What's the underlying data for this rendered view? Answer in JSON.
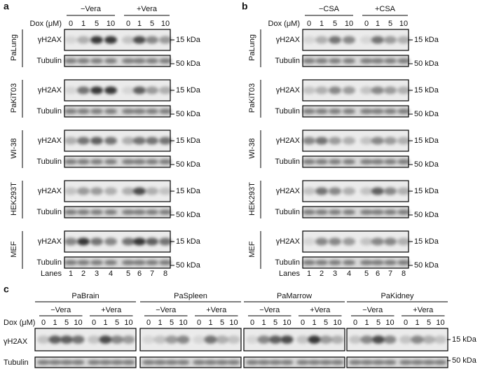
{
  "panels": [
    {
      "label": "a",
      "groups": [
        "−Vera",
        "+Vera"
      ],
      "dose_label": "Dox (μM)",
      "doses": [
        0,
        1,
        5,
        10,
        0,
        1,
        5,
        10
      ],
      "blots": [
        {
          "cell_line": "PaLung",
          "rows": [
            {
              "antibody": "γH2AX",
              "size": "15 kDa"
            },
            {
              "antibody": "Tubulin",
              "size": "50 kDa"
            }
          ]
        },
        {
          "cell_line": "PaKiT03",
          "rows": [
            {
              "antibody": "γH2AX",
              "size": "15 kDa"
            },
            {
              "antibody": "Tubulin",
              "size": "50 kDa"
            }
          ]
        },
        {
          "cell_line": "WI-38",
          "rows": [
            {
              "antibody": "γH2AX",
              "size": "15 kDa"
            },
            {
              "antibody": "Tubulin",
              "size": "50 kDa"
            }
          ]
        },
        {
          "cell_line": "HEK293T",
          "rows": [
            {
              "antibody": "γH2AX",
              "size": "15 kDa"
            },
            {
              "antibody": "Tubulin",
              "size": "50 kDa"
            }
          ]
        },
        {
          "cell_line": "MEF",
          "rows": [
            {
              "antibody": "γH2AX",
              "size": "15 kDa"
            },
            {
              "antibody": "Tubulin",
              "size": "50 kDa"
            }
          ]
        }
      ],
      "lanes_label": "Lanes",
      "lanes": [
        1,
        2,
        3,
        4,
        5,
        6,
        7,
        8
      ]
    },
    {
      "label": "b",
      "groups": [
        "−CSA",
        "+CSA"
      ],
      "dose_label": "Dox (μM)",
      "doses": [
        0,
        1,
        5,
        10,
        0,
        1,
        5,
        10
      ],
      "blots": [
        {
          "cell_line": "PaLung",
          "rows": [
            {
              "antibody": "γH2AX",
              "size": "15 kDa"
            },
            {
              "antibody": "Tubulin",
              "size": "50 kDa"
            }
          ]
        },
        {
          "cell_line": "PaKiT03",
          "rows": [
            {
              "antibody": "γH2AX",
              "size": "15 kDa"
            },
            {
              "antibody": "Tubulin",
              "size": "50 kDa"
            }
          ]
        },
        {
          "cell_line": "WI-38",
          "rows": [
            {
              "antibody": "γH2AX",
              "size": "15 kDa"
            },
            {
              "antibody": "Tubulin",
              "size": "50 kDa"
            }
          ]
        },
        {
          "cell_line": "HEK293T",
          "rows": [
            {
              "antibody": "γH2AX",
              "size": "15 kDa"
            },
            {
              "antibody": "Tubulin",
              "size": "50 kDa"
            }
          ]
        },
        {
          "cell_line": "MEF",
          "rows": [
            {
              "antibody": "γH2AX",
              "size": "15 kDa"
            },
            {
              "antibody": "Tubulin",
              "size": "50 kDa"
            }
          ]
        }
      ],
      "lanes_label": "Lanes",
      "lanes": [
        1,
        2,
        3,
        4,
        5,
        6,
        7,
        8
      ]
    }
  ],
  "panel_c": {
    "label": "c",
    "dose_label": "Dox (μM)",
    "rows": [
      {
        "antibody": "γH2AX",
        "size": "15 kDa"
      },
      {
        "antibody": "Tubulin",
        "size": "50 kDa"
      }
    ],
    "tissues": [
      {
        "name": "PaBrain",
        "groups": [
          "−Vera",
          "+Vera"
        ],
        "doses": [
          0,
          1,
          5,
          10,
          0,
          1,
          5,
          10
        ]
      },
      {
        "name": "PaSpleen",
        "groups": [
          "−Vera",
          "+Vera"
        ],
        "doses": [
          0,
          1,
          5,
          10,
          0,
          1,
          5,
          10
        ]
      },
      {
        "name": "PaMarrow",
        "groups": [
          "−Vera",
          "+Vera"
        ],
        "doses": [
          0,
          1,
          5,
          10,
          0,
          1,
          5,
          10
        ]
      },
      {
        "name": "PaKidney",
        "groups": [
          "−Vera",
          "+Vera"
        ],
        "doses": [
          0,
          1,
          5,
          10,
          0,
          1,
          5,
          10
        ]
      }
    ]
  }
}
